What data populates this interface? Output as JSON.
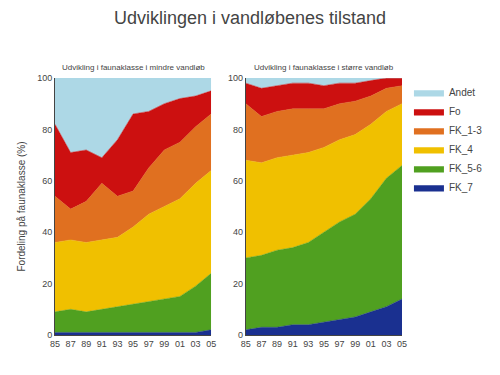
{
  "title": "Udviklingen i vandløbenes tilstand",
  "chart_data": [
    {
      "type": "area",
      "stacked": true,
      "grid": true,
      "title": "Udvikling i faunaklasse i mindre vandløb",
      "ylabel": "Fordeling på faunaklasse (%)",
      "categories": [
        "85",
        "87",
        "89",
        "91",
        "93",
        "95",
        "97",
        "99",
        "01",
        "03",
        "05"
      ],
      "ylim": [
        0,
        100
      ],
      "yticks": [
        0,
        20,
        40,
        60,
        80,
        100
      ],
      "series": [
        {
          "name": "FK_7",
          "color": "#1a3090",
          "values": [
            1,
            1,
            1,
            1,
            1,
            1,
            1,
            1,
            1,
            1,
            2
          ]
        },
        {
          "name": "FK_5-6",
          "color": "#50a020",
          "values": [
            8,
            9,
            8,
            9,
            10,
            11,
            12,
            13,
            14,
            18,
            22
          ]
        },
        {
          "name": "FK_4",
          "color": "#f0c000",
          "values": [
            27,
            27,
            27,
            27,
            27,
            30,
            34,
            36,
            38,
            40,
            40
          ]
        },
        {
          "name": "FK_1-3",
          "color": "#e07020",
          "values": [
            18,
            12,
            16,
            22,
            16,
            14,
            18,
            22,
            22,
            22,
            22
          ]
        },
        {
          "name": "Fo",
          "color": "#cc1010",
          "values": [
            28,
            22,
            20,
            10,
            22,
            30,
            22,
            18,
            17,
            12,
            9
          ]
        },
        {
          "name": "Andet",
          "color": "#add8e6",
          "values": [
            18,
            29,
            28,
            31,
            24,
            14,
            13,
            10,
            8,
            7,
            5
          ]
        }
      ]
    },
    {
      "type": "area",
      "stacked": true,
      "grid": true,
      "legend": "right",
      "title": "Udvikling i faunaklasse i større vandløb",
      "categories": [
        "85",
        "87",
        "89",
        "91",
        "93",
        "95",
        "97",
        "99",
        "01",
        "03",
        "05"
      ],
      "ylim": [
        0,
        100
      ],
      "yticks": [
        0,
        20,
        40,
        60,
        80,
        100
      ],
      "series": [
        {
          "name": "FK_7",
          "color": "#1a3090",
          "values": [
            2,
            3,
            3,
            4,
            4,
            5,
            6,
            7,
            9,
            11,
            14
          ]
        },
        {
          "name": "FK_5-6",
          "color": "#50a020",
          "values": [
            28,
            28,
            30,
            30,
            32,
            35,
            38,
            40,
            44,
            50,
            52
          ]
        },
        {
          "name": "FK_4",
          "color": "#f0c000",
          "values": [
            38,
            36,
            36,
            36,
            35,
            33,
            32,
            31,
            29,
            26,
            24
          ]
        },
        {
          "name": "FK_1-3",
          "color": "#e07020",
          "values": [
            22,
            18,
            18,
            18,
            17,
            15,
            14,
            13,
            11,
            9,
            7
          ]
        },
        {
          "name": "Fo",
          "color": "#cc1010",
          "values": [
            8,
            11,
            10,
            10,
            10,
            9,
            8,
            7,
            6,
            4,
            3
          ]
        },
        {
          "name": "Andet",
          "color": "#add8e6",
          "values": [
            2,
            4,
            3,
            2,
            2,
            3,
            2,
            2,
            1,
            0,
            0
          ]
        }
      ]
    }
  ]
}
